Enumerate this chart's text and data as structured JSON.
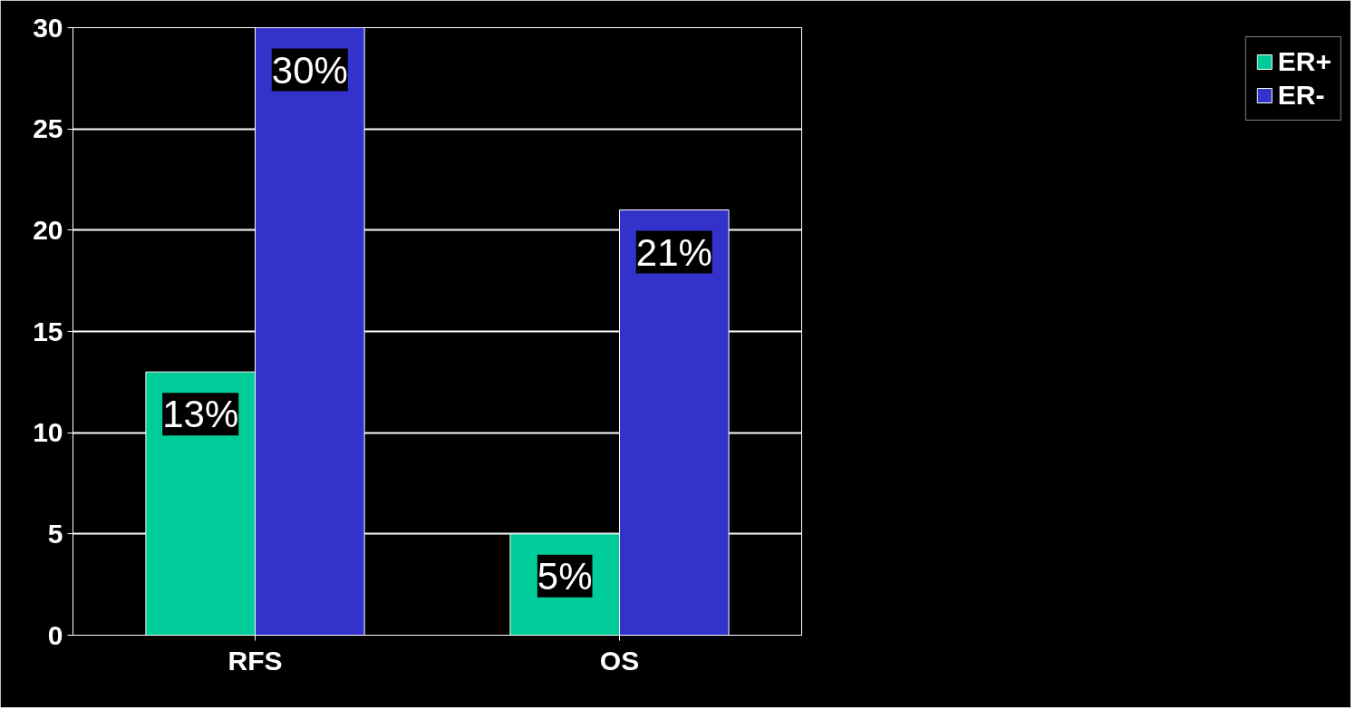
{
  "chart_data": {
    "type": "bar",
    "categories": [
      "RFS",
      "OS"
    ],
    "series": [
      {
        "name": "ER+",
        "color": "#00cc99",
        "values": [
          13,
          5
        ],
        "value_labels": [
          "13%",
          "5%"
        ]
      },
      {
        "name": "ER-",
        "color": "#3333cc",
        "values": [
          30,
          21
        ],
        "value_labels": [
          "30%",
          "21%"
        ]
      }
    ],
    "ylim": [
      0,
      30
    ],
    "yticks": [
      0,
      5,
      10,
      15,
      20,
      25,
      30
    ],
    "grid": "y",
    "legend": "right"
  }
}
